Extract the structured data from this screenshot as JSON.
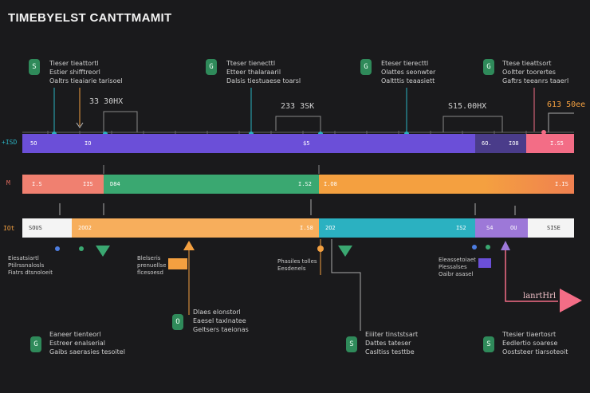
{
  "title": "TIMEBYELST CANTTMAMIT",
  "top_callouts": [
    {
      "badge": "S",
      "lines": [
        "Tieser tieattortl",
        "Estier shifftreorl",
        "Oaltrs tieaiarie tarisoel"
      ]
    },
    {
      "badge": "G",
      "lines": [
        "Tteser tienecttl",
        "Etteer thalaraaril",
        "Dalsis tiestuaese toarsl"
      ]
    },
    {
      "badge": "G",
      "lines": [
        "Eteser tierecttl",
        "Olattes seonwter",
        "Oaltttis teaasiett"
      ]
    },
    {
      "badge": "G",
      "lines": [
        "Ttese tieattsort",
        "Ooltter toorertes",
        "Gaftrs teeanrs taaerl"
      ]
    }
  ],
  "values": [
    "33 30HX",
    "233 3SK",
    "S15.00HX",
    "613 50ee"
  ],
  "row_labels": [
    "+ISD",
    "M",
    "IOt"
  ],
  "bar1": {
    "segments": [
      {
        "labels": [
          "5O",
          "IO",
          "$5"
        ]
      },
      {
        "labels": [
          "6O.",
          "IO8"
        ]
      },
      {
        "labels": [
          "I.S5"
        ]
      }
    ]
  },
  "bar2": {
    "segments": [
      {
        "labels": [
          "I.S",
          "IIS"
        ]
      },
      {
        "labels": [
          "D84",
          "I.S2"
        ]
      },
      {
        "labels": [
          "I.O8",
          "I.IS"
        ]
      }
    ]
  },
  "bar3": {
    "segments": [
      {
        "labels": [
          "SOUS"
        ]
      },
      {
        "labels": [
          "2OO2",
          "I.S8"
        ]
      },
      {
        "labels": [
          "2O2",
          "IS2"
        ]
      },
      {
        "labels": [
          "S4",
          "OU"
        ]
      },
      {
        "labels": [
          "SISE"
        ]
      }
    ]
  },
  "mid_notes": [
    {
      "lines": [
        "Eiesatsiartl",
        "Ptilrssnalosls",
        "Fiatrs dtsnoloeit"
      ]
    },
    {
      "lines": [
        "Blelseris",
        "prenuellse",
        "flcesoesd"
      ]
    },
    {
      "lines": [
        "Phasiles tolles",
        "Eesdenels"
      ]
    },
    {
      "lines": [
        "Eleassetoiaet",
        "Plessalses",
        "Oaibr asasel"
      ]
    }
  ],
  "bottom_callouts": [
    {
      "badge": "G",
      "lines": [
        "Eaneer tienteorl",
        "Estreer enalserial",
        "Gaibs saerasies tesoitel"
      ]
    },
    {
      "badge": "O",
      "lines": [
        "Dlaes elonstorl",
        "Eaesel taxlnatee",
        "Geltsers taeionas"
      ]
    },
    {
      "badge": "S",
      "lines": [
        "Eiiiter tinststsart",
        "Dattes tateser",
        "Casltiss testtbe"
      ]
    },
    {
      "badge": "S",
      "lines": [
        "Ttesier tiaertosrt",
        "Eedlertio soarese",
        "Ooststeer tiarsoteoit"
      ]
    }
  ],
  "arrow_label": "lanrtHrl",
  "colors": {
    "purple": "#6b4fd8",
    "salmon": "#f08070",
    "green": "#3aa871",
    "orange": "#f4a040",
    "peach": "#f7ae5c",
    "teal": "#2bb1c1",
    "lavender": "#9d78d8",
    "pink": "#f36d86"
  }
}
